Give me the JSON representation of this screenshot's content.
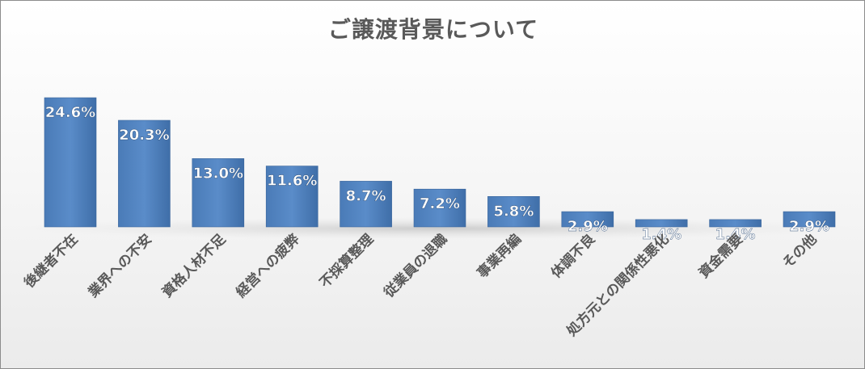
{
  "chart_data": {
    "type": "bar",
    "title": "ご譲渡背景について",
    "categories": [
      "後継者不在",
      "業界への不安",
      "資格人材不足",
      "経営への疲弊",
      "不採算整理",
      "従業員の退職",
      "事業再編",
      "体調不良",
      "処方元との関係性悪化",
      "資金需要",
      "その他"
    ],
    "values": [
      24.6,
      20.3,
      13.0,
      11.6,
      8.7,
      7.2,
      5.8,
      2.9,
      1.4,
      1.4,
      2.9
    ],
    "value_labels": [
      "24.6%",
      "20.3%",
      "13.0%",
      "11.6%",
      "8.7%",
      "7.2%",
      "5.8%",
      "2.9%",
      "1.4%",
      "1.4%",
      "2.9%"
    ],
    "xlabel": "",
    "ylabel": "",
    "ylim": [
      0,
      24.6
    ],
    "grid": false,
    "legend": "none",
    "bar_color": "#4f81bd",
    "label_color": "#ffffff",
    "axis_text_color": "#595959"
  }
}
